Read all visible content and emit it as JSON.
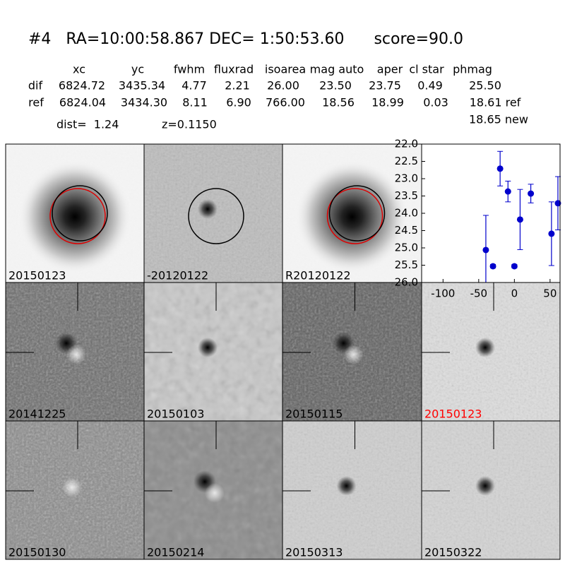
{
  "header": {
    "title": "#4   RA=10:00:58.867 DEC= 1:50:53.60      score=90.0"
  },
  "table": {
    "columns": [
      "xc",
      "yc",
      "fwhm",
      "fluxrad",
      "isoarea",
      "mag auto",
      "aper",
      "cl star",
      "phmag"
    ],
    "rows": [
      [
        "dif",
        "6824.72",
        "3435.34",
        "4.77",
        "2.21",
        "26.00",
        "23.50",
        "23.75",
        "0.49",
        "25.50"
      ],
      [
        "ref",
        "6824.04",
        "3434.30",
        "8.11",
        "6.90",
        "766.00",
        "18.56",
        "18.99",
        "0.03",
        "18.61 ref"
      ]
    ],
    "extra": "18.65 new"
  },
  "info": {
    "dist": "dist=  1.24",
    "z": "z=0.1150"
  },
  "panels": {
    "labels": [
      "20150123",
      "-20120122",
      "R20120122",
      "20141225",
      "20150103",
      "20150115",
      "20150123",
      "20150130",
      "20150214",
      "20150313",
      "20150322"
    ]
  },
  "chart_data": {
    "type": "scatter",
    "x": [
      -40,
      -30,
      -20,
      -9,
      0,
      8,
      23,
      52,
      61
    ],
    "values": [
      25.06,
      25.53,
      22.71,
      23.37,
      25.53,
      24.18,
      23.43,
      24.59,
      23.71
    ],
    "errors": [
      1.0,
      0.05,
      0.5,
      0.3,
      0.05,
      0.87,
      0.27,
      0.92,
      0.77
    ],
    "color": "#0000cc",
    "xlim": [
      -130,
      64
    ],
    "ylim": [
      26,
      22
    ],
    "xticks": [
      -100,
      -50,
      0,
      50
    ],
    "yticks": [
      {
        "value": 22,
        "label": "22.0"
      },
      22.5,
      {
        "value": 23,
        "label": "23.0"
      },
      23.5,
      {
        "value": 24,
        "label": "24.0"
      },
      24.5,
      {
        "value": 25,
        "label": "25.0"
      },
      25.5,
      {
        "value": 26,
        "label": "26.0"
      }
    ]
  }
}
